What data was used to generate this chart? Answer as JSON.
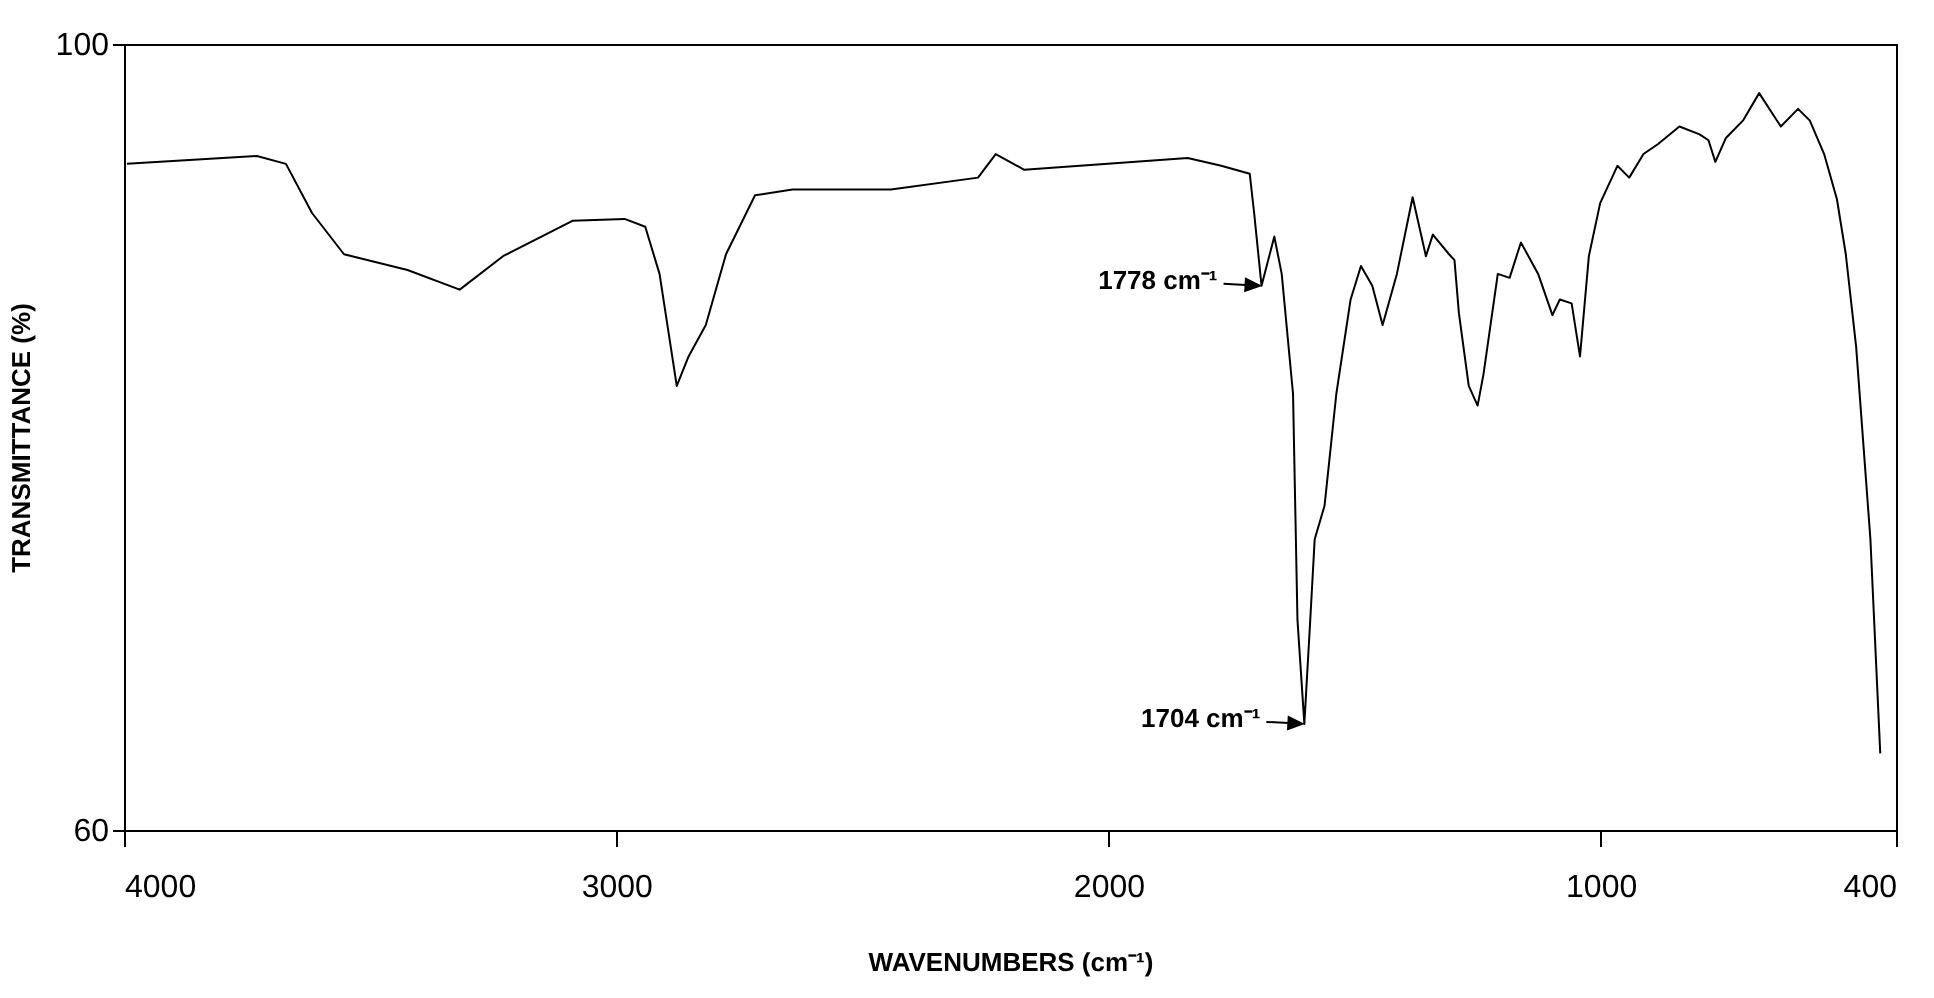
{
  "chart_data": {
    "type": "line",
    "xlabel": "WAVENUMBERS (cm⁻¹)",
    "ylabel": "TRANSMITTANCE (%)",
    "x": [
      3994,
      3730,
      3671,
      3618,
      3553,
      3424,
      3318,
      3230,
      3089,
      2983,
      2941,
      2912,
      2877,
      2853,
      2818,
      2777,
      2718,
      2642,
      2442,
      2265,
      2229,
      2171,
      1839,
      1771,
      1713,
      1704,
      1689,
      1663,
      1648,
      1625,
      1616,
      1602,
      1590,
      1581,
      1561,
      1537,
      1508,
      1487,
      1464,
      1443,
      1414,
      1382,
      1355,
      1341,
      1308,
      1297,
      1288,
      1268,
      1250,
      1238,
      1209,
      1185,
      1162,
      1127,
      1098,
      1083,
      1059,
      1042,
      1024,
      1001,
      966,
      942,
      913,
      884,
      840,
      799,
      781,
      767,
      746,
      711,
      678,
      634,
      599,
      575,
      546,
      520,
      502,
      481,
      452,
      432
    ],
    "series": [
      {
        "color": "#000000",
        "values": [
          93.9,
          94.3,
          93.9,
          91.4,
          89.3,
          88.5,
          87.5,
          89.2,
          91.0,
          91.1,
          90.7,
          88.3,
          82.6,
          84.1,
          85.7,
          89.3,
          92.3,
          92.6,
          92.6,
          93.2,
          94.4,
          93.6,
          94.2,
          93.8,
          93.4,
          91.4,
          87.7,
          90.2,
          88.3,
          82.2,
          70.7,
          65.4,
          70.7,
          74.8,
          76.5,
          82.2,
          87.0,
          88.7,
          87.7,
          85.7,
          88.3,
          92.2,
          89.2,
          90.3,
          89.3,
          89.0,
          86.3,
          82.6,
          81.6,
          83.2,
          88.3,
          88.1,
          89.9,
          88.3,
          86.2,
          87.0,
          86.8,
          84.1,
          89.2,
          91.9,
          93.8,
          93.2,
          94.4,
          94.9,
          95.8,
          95.4,
          95.1,
          94.0,
          95.2,
          96.1,
          97.5,
          95.8,
          96.7,
          96.1,
          94.4,
          92.1,
          89.3,
          84.6,
          74.8,
          63.9
        ]
      }
    ],
    "xlim": [
      4000,
      400
    ],
    "xticks": [
      4000,
      3000,
      2000,
      1000,
      400
    ],
    "ylim": [
      60,
      100
    ],
    "yticks": [
      60,
      100
    ],
    "grid": false,
    "marker": "none",
    "line_style": "solid",
    "annotations": [
      {
        "text": "1778 cm⁻¹",
        "x": 1689,
        "y": 87.7
      },
      {
        "text": "1704 cm⁻¹",
        "x": 1602,
        "y": 65.4
      }
    ]
  }
}
